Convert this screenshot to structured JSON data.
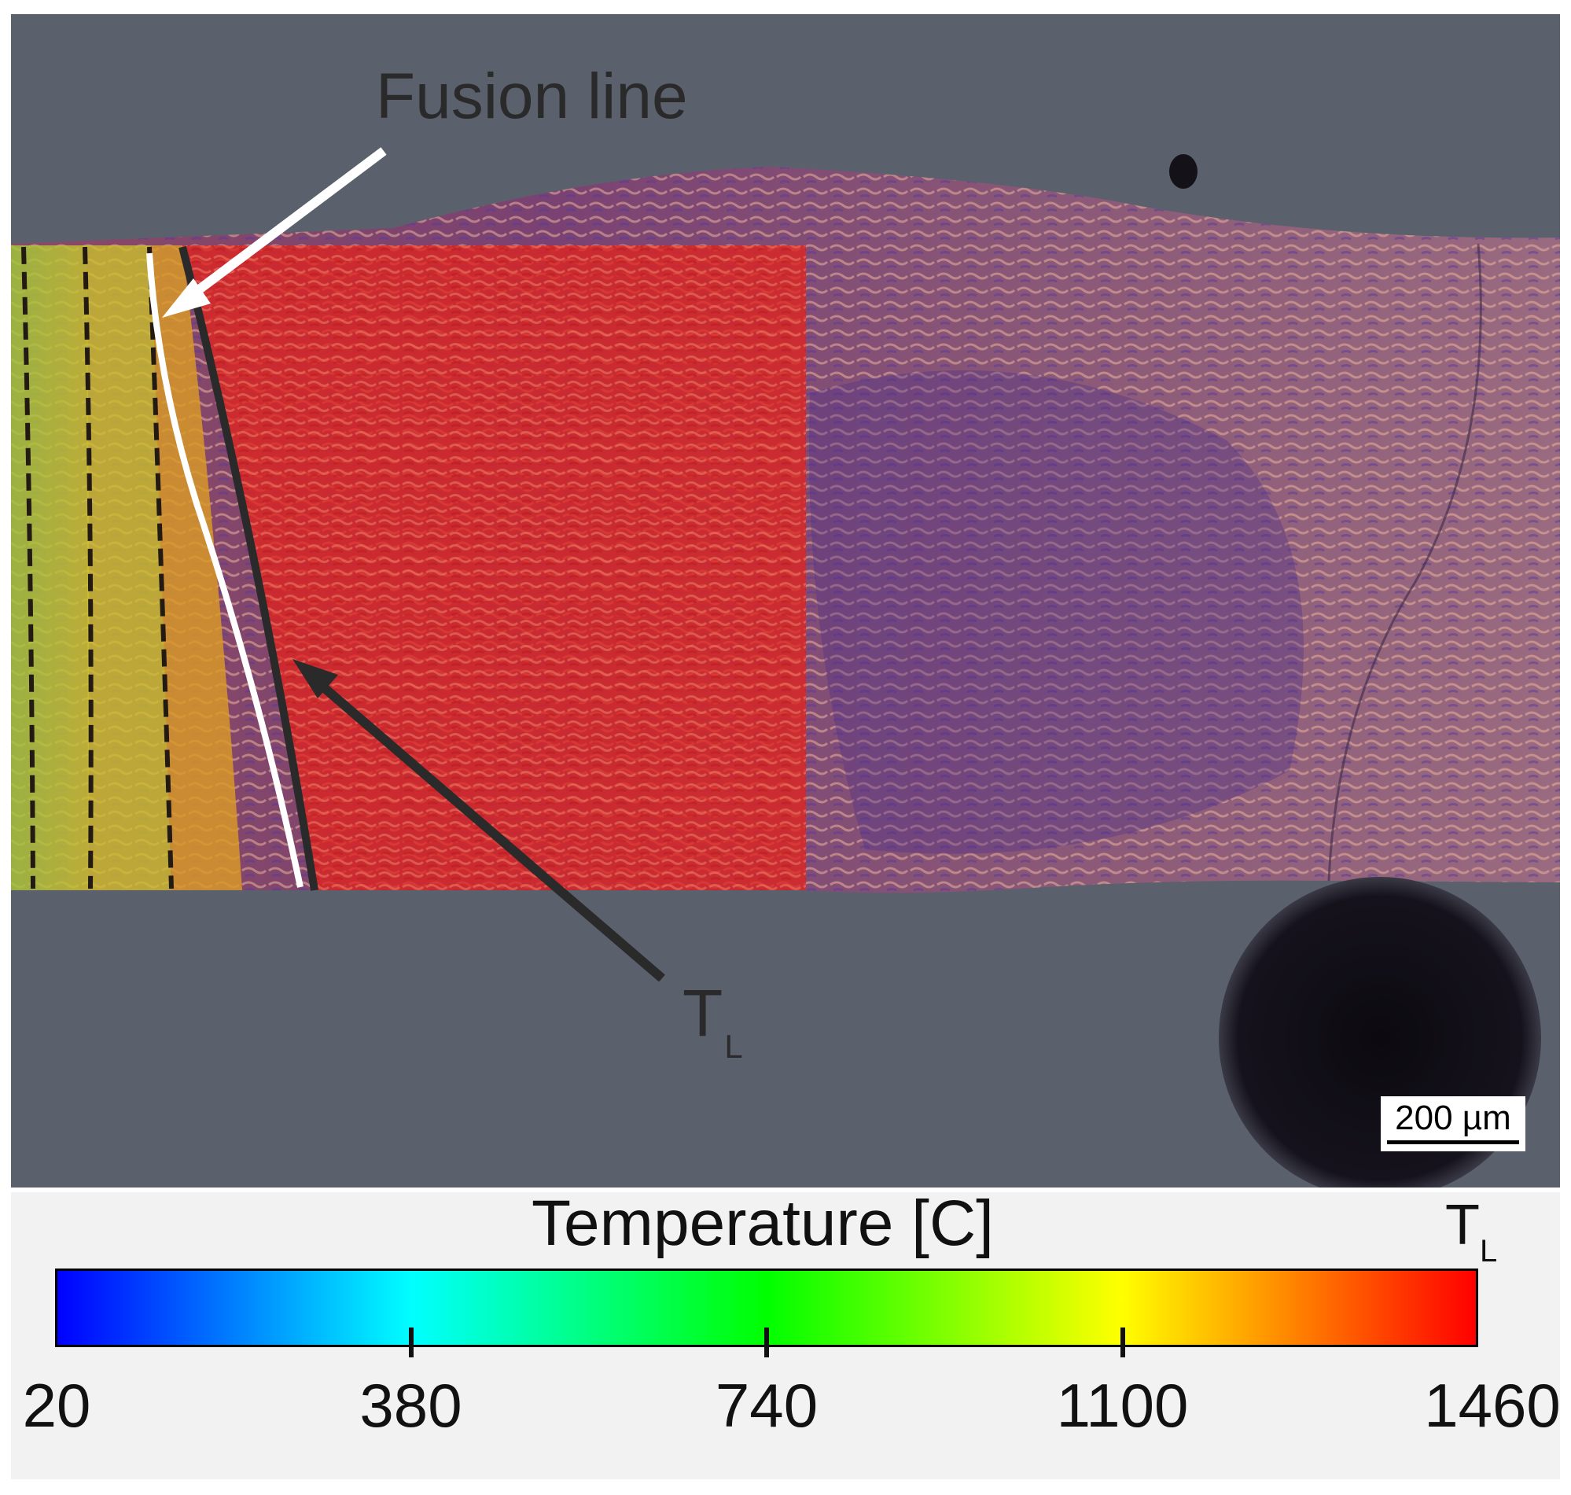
{
  "image": {
    "annotation_fusion_label": "Fusion line",
    "annotation_tl_main": "T",
    "annotation_tl_sub": "L",
    "scale_bar_label": "200 µm"
  },
  "colorbar": {
    "title": "Temperature [C]",
    "max_label_main": "T",
    "max_label_sub": "L",
    "tick_labels": [
      "20",
      "380",
      "740",
      "1100",
      "1460"
    ],
    "min_value": 20,
    "max_value": 1460,
    "tick_values": [
      20,
      380,
      740,
      1100,
      1460
    ],
    "colors": [
      "#0000ff",
      "#00ffff",
      "#00ff00",
      "#ffff00",
      "#ff0000"
    ]
  },
  "colors": {
    "background": "#5a5f6c",
    "fusion_line": "#ffffff",
    "liquidus_line": "#2a2a2a",
    "weld_overlay": "#e0241f"
  }
}
